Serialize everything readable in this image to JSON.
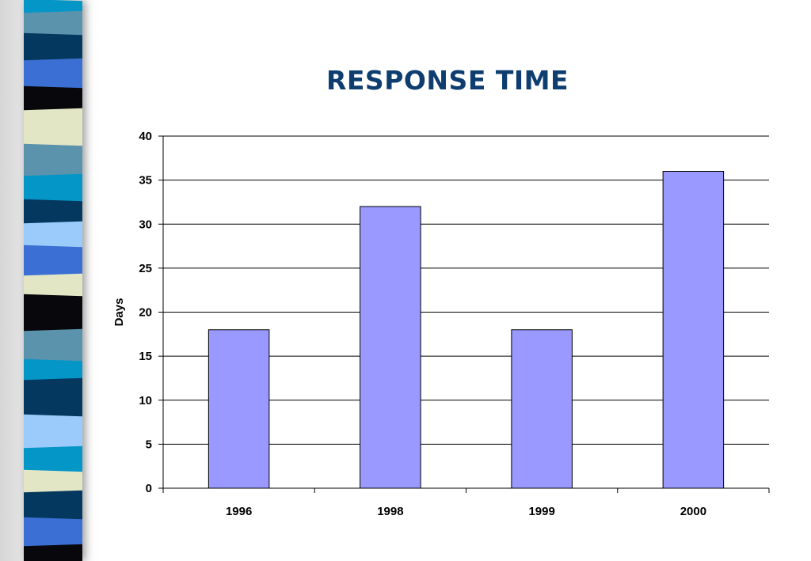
{
  "slide": {
    "stripe_colors": [
      "#5b92ac",
      "#05385f",
      "#3b6fd4",
      "#08080c",
      "#e3e6c5",
      "#0596c8",
      "#9bcbfa"
    ]
  },
  "chart_data": {
    "type": "bar",
    "title": "RESPONSE TIME",
    "xlabel": "",
    "ylabel": "Days",
    "categories": [
      "1996",
      "1998",
      "1999",
      "2000"
    ],
    "series": [
      {
        "values": [
          18,
          32,
          18,
          36
        ],
        "color": "#9999ff"
      }
    ],
    "ylim": [
      0,
      40
    ],
    "yticks": [
      0,
      5,
      10,
      15,
      20,
      25,
      30,
      35,
      40
    ],
    "grid": true,
    "legend": "none"
  }
}
